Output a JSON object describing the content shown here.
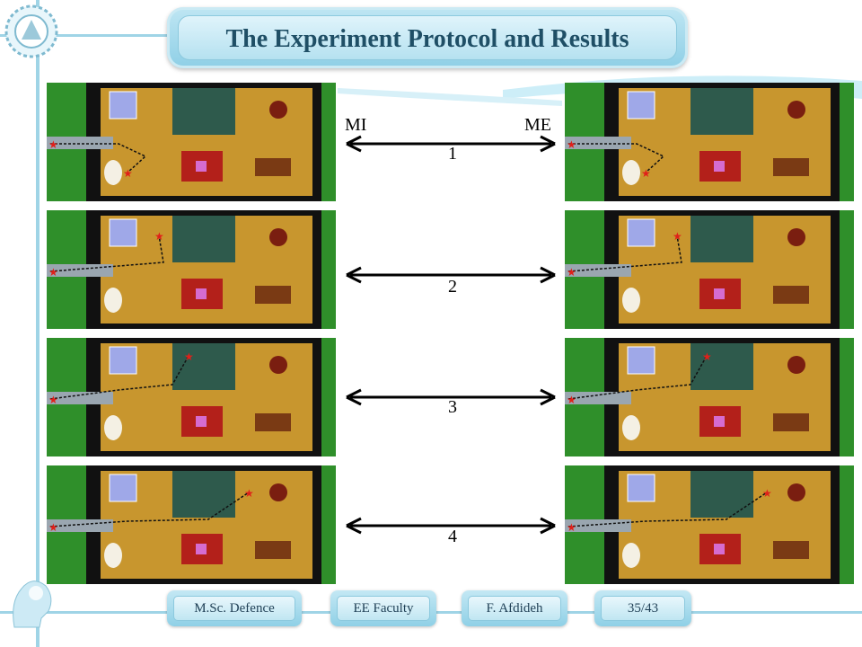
{
  "title": "The Experiment Protocol and Results",
  "labels": {
    "left": "MI",
    "right": "ME"
  },
  "rows": [
    {
      "number": "1"
    },
    {
      "number": "2"
    },
    {
      "number": "3"
    },
    {
      "number": "4"
    }
  ],
  "footer": {
    "item1": "M.Sc. Defence",
    "item2": "EE Faculty",
    "item3": "F. Afdideh",
    "page": "35/43"
  },
  "colors": {
    "accent": "#9fd4e6",
    "title_text": "#1f4f66",
    "floor": "#c8962e",
    "bathroom": "#2e5a4c",
    "grass": "#2f8f2a",
    "marker": "#e0201a"
  }
}
